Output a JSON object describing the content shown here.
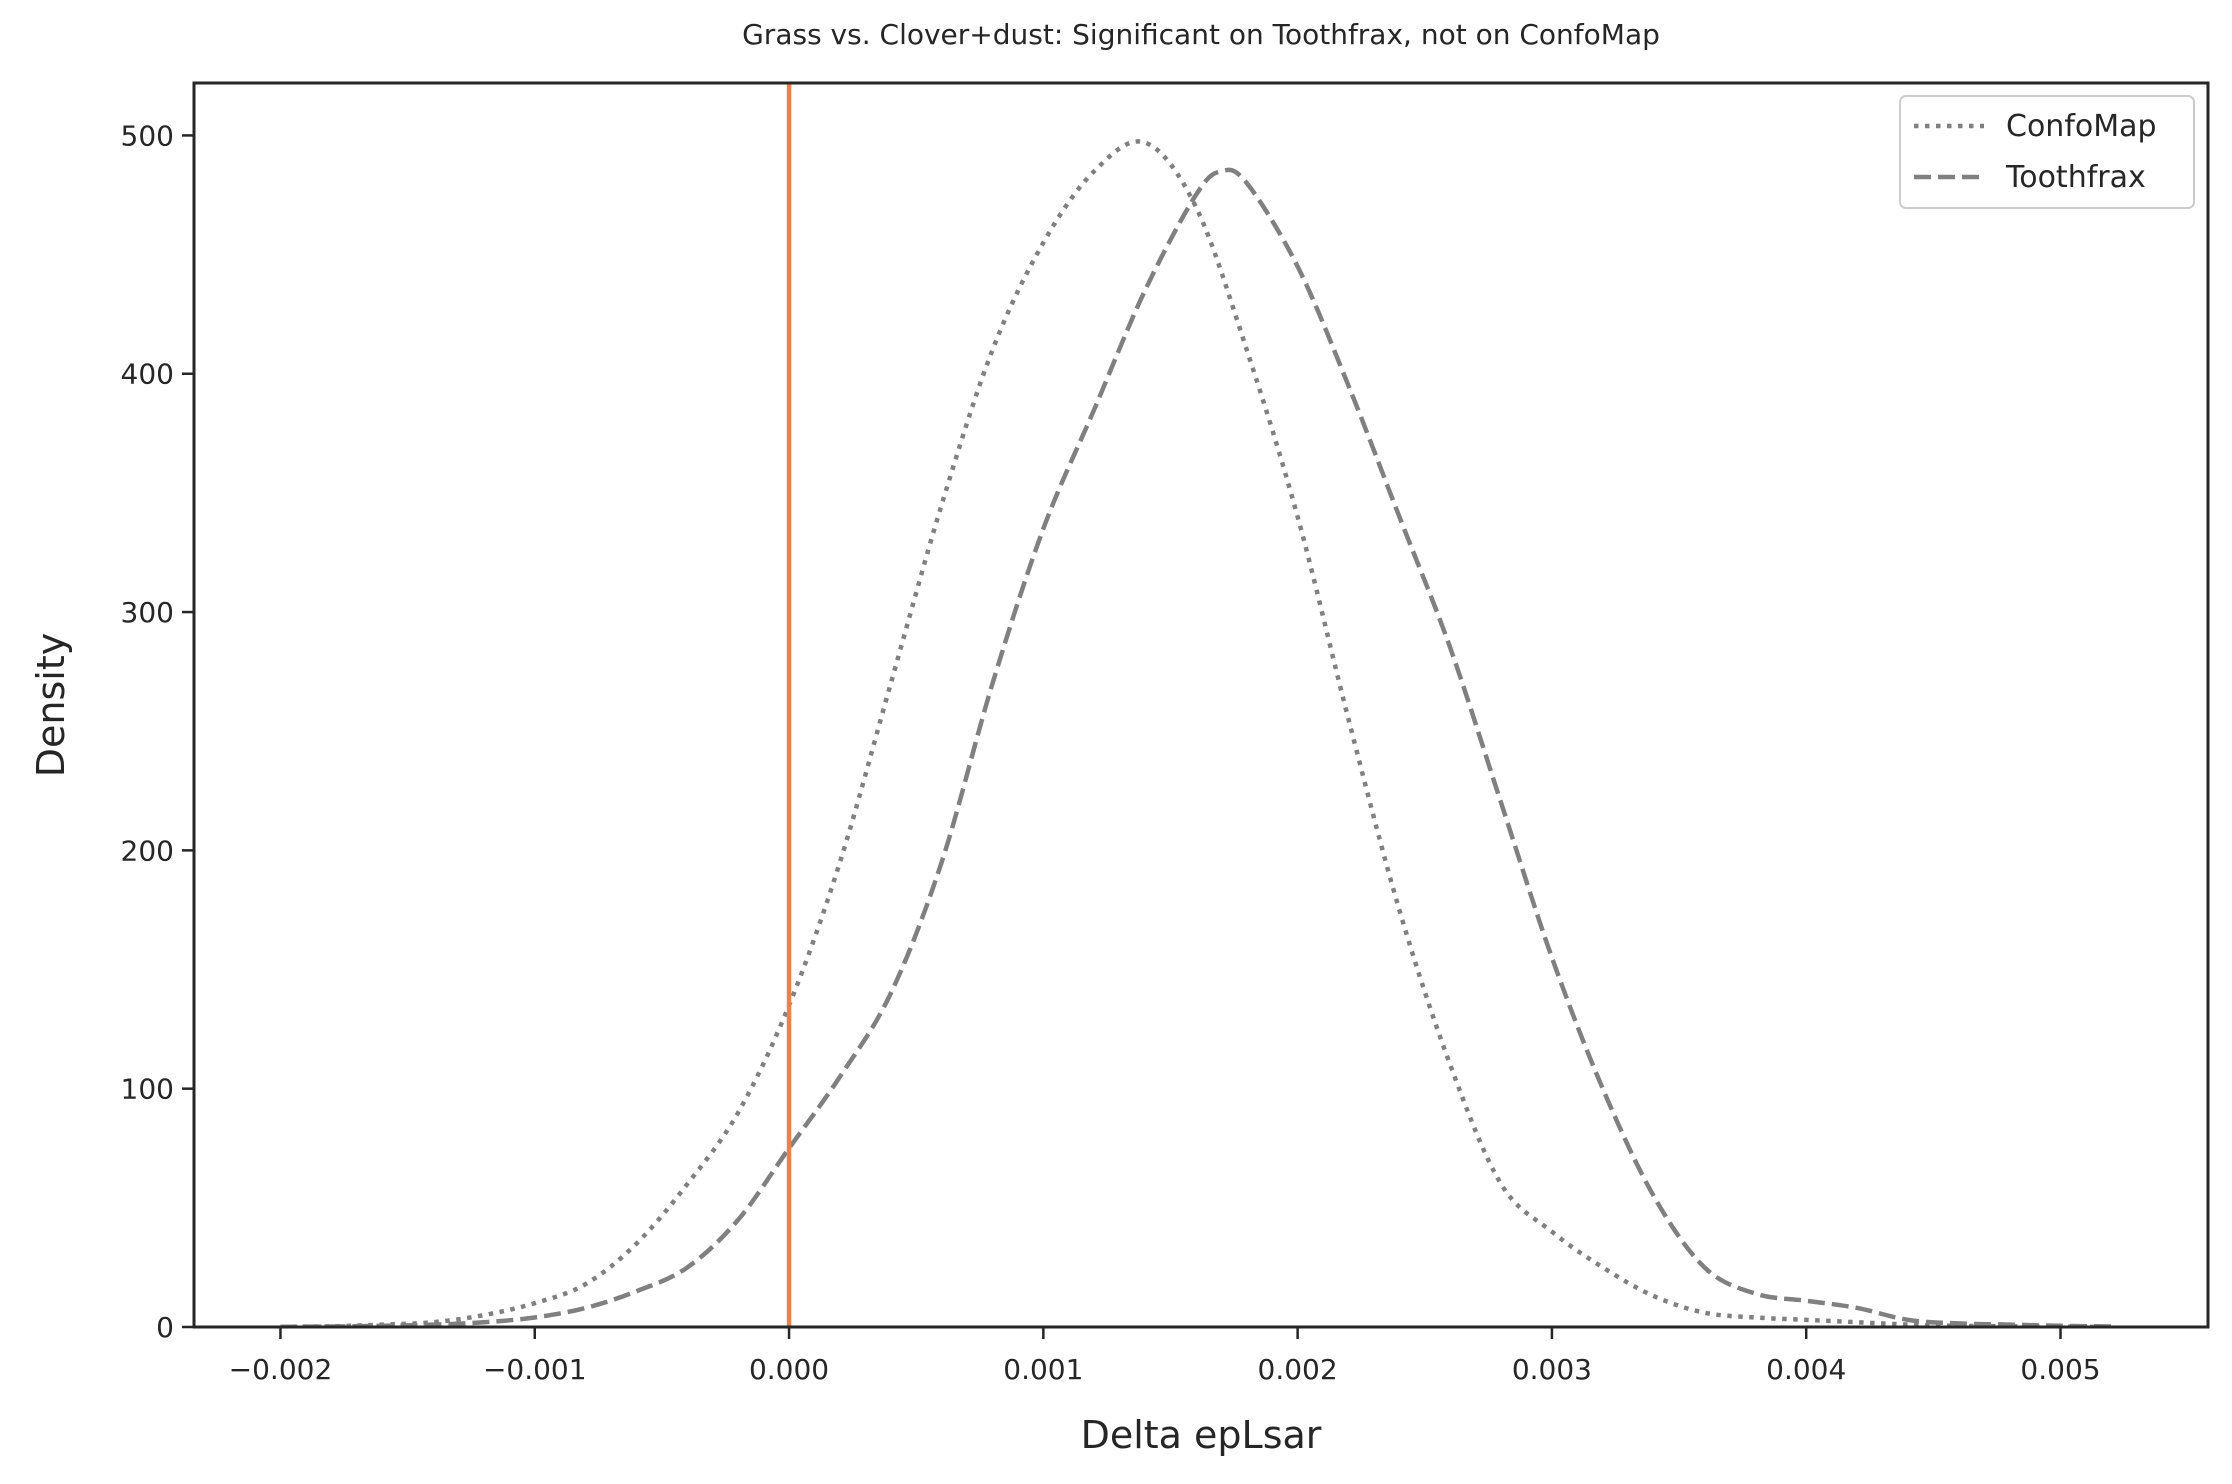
{
  "chart_data": {
    "type": "line",
    "title": "Grass vs. Clover+dust: Significant on Toothfrax, not on ConfoMap",
    "xlabel": "Delta epLsar",
    "ylabel": "Density",
    "xlim": [
      -0.00234,
      0.00558
    ],
    "ylim": [
      0,
      522
    ],
    "xticks": [
      -0.002,
      -0.001,
      0.0,
      0.001,
      0.002,
      0.003,
      0.004,
      0.005
    ],
    "xtick_labels": [
      "−0.002",
      "−0.001",
      "0.000",
      "0.001",
      "0.002",
      "0.003",
      "0.004",
      "0.005"
    ],
    "yticks": [
      0,
      100,
      200,
      300,
      400,
      500
    ],
    "ytick_labels": [
      "0",
      "100",
      "200",
      "300",
      "400",
      "500"
    ],
    "grid": false,
    "legend_position": "top-right",
    "reference_line": {
      "x": 0.0,
      "color": "#e8834f"
    },
    "series": [
      {
        "name": "ConfoMap",
        "style": "dotted",
        "color": "#808080",
        "x": [
          -0.002,
          -0.0018,
          -0.0016,
          -0.0014,
          -0.0012,
          -0.001,
          -0.0008,
          -0.0006,
          -0.0004,
          -0.0002,
          0.0,
          0.0002,
          0.0004,
          0.0006,
          0.0008,
          0.001,
          0.0012,
          0.0014,
          0.0016,
          0.0018,
          0.002,
          0.0022,
          0.0024,
          0.0026,
          0.0028,
          0.003,
          0.0032,
          0.0034,
          0.0036,
          0.0038,
          0.004,
          0.0042,
          0.0044,
          0.0046,
          0.0048,
          0.005,
          0.0052
        ],
        "y": [
          0.1,
          0.3,
          1,
          2,
          5,
          10,
          18,
          35,
          60,
          90,
          135,
          195,
          270,
          345,
          410,
          455,
          485,
          497,
          470,
          410,
          340,
          255,
          175,
          110,
          60,
          40,
          25,
          13,
          6,
          4,
          3,
          2,
          1,
          0.5,
          0.3,
          0.1,
          0
        ]
      },
      {
        "name": "Toothfrax",
        "style": "dashed",
        "color": "#808080",
        "x": [
          -0.002,
          -0.0018,
          -0.0016,
          -0.0014,
          -0.0012,
          -0.001,
          -0.0008,
          -0.0006,
          -0.0004,
          -0.0002,
          0.0,
          0.0002,
          0.0004,
          0.0006,
          0.0008,
          0.001,
          0.0012,
          0.0014,
          0.0016,
          0.0017,
          0.0018,
          0.002,
          0.0022,
          0.0024,
          0.0026,
          0.0028,
          0.003,
          0.0032,
          0.0034,
          0.0036,
          0.0038,
          0.004,
          0.0042,
          0.0044,
          0.0046,
          0.0048,
          0.005,
          0.0052
        ],
        "y": [
          0.1,
          0.2,
          0.5,
          1,
          2,
          4,
          8,
          15,
          25,
          45,
          75,
          105,
          140,
          195,
          270,
          335,
          385,
          435,
          475,
          485,
          480,
          445,
          395,
          340,
          285,
          220,
          155,
          100,
          55,
          25,
          14,
          11,
          8,
          3,
          1.5,
          1,
          0.5,
          0.2
        ]
      }
    ]
  }
}
